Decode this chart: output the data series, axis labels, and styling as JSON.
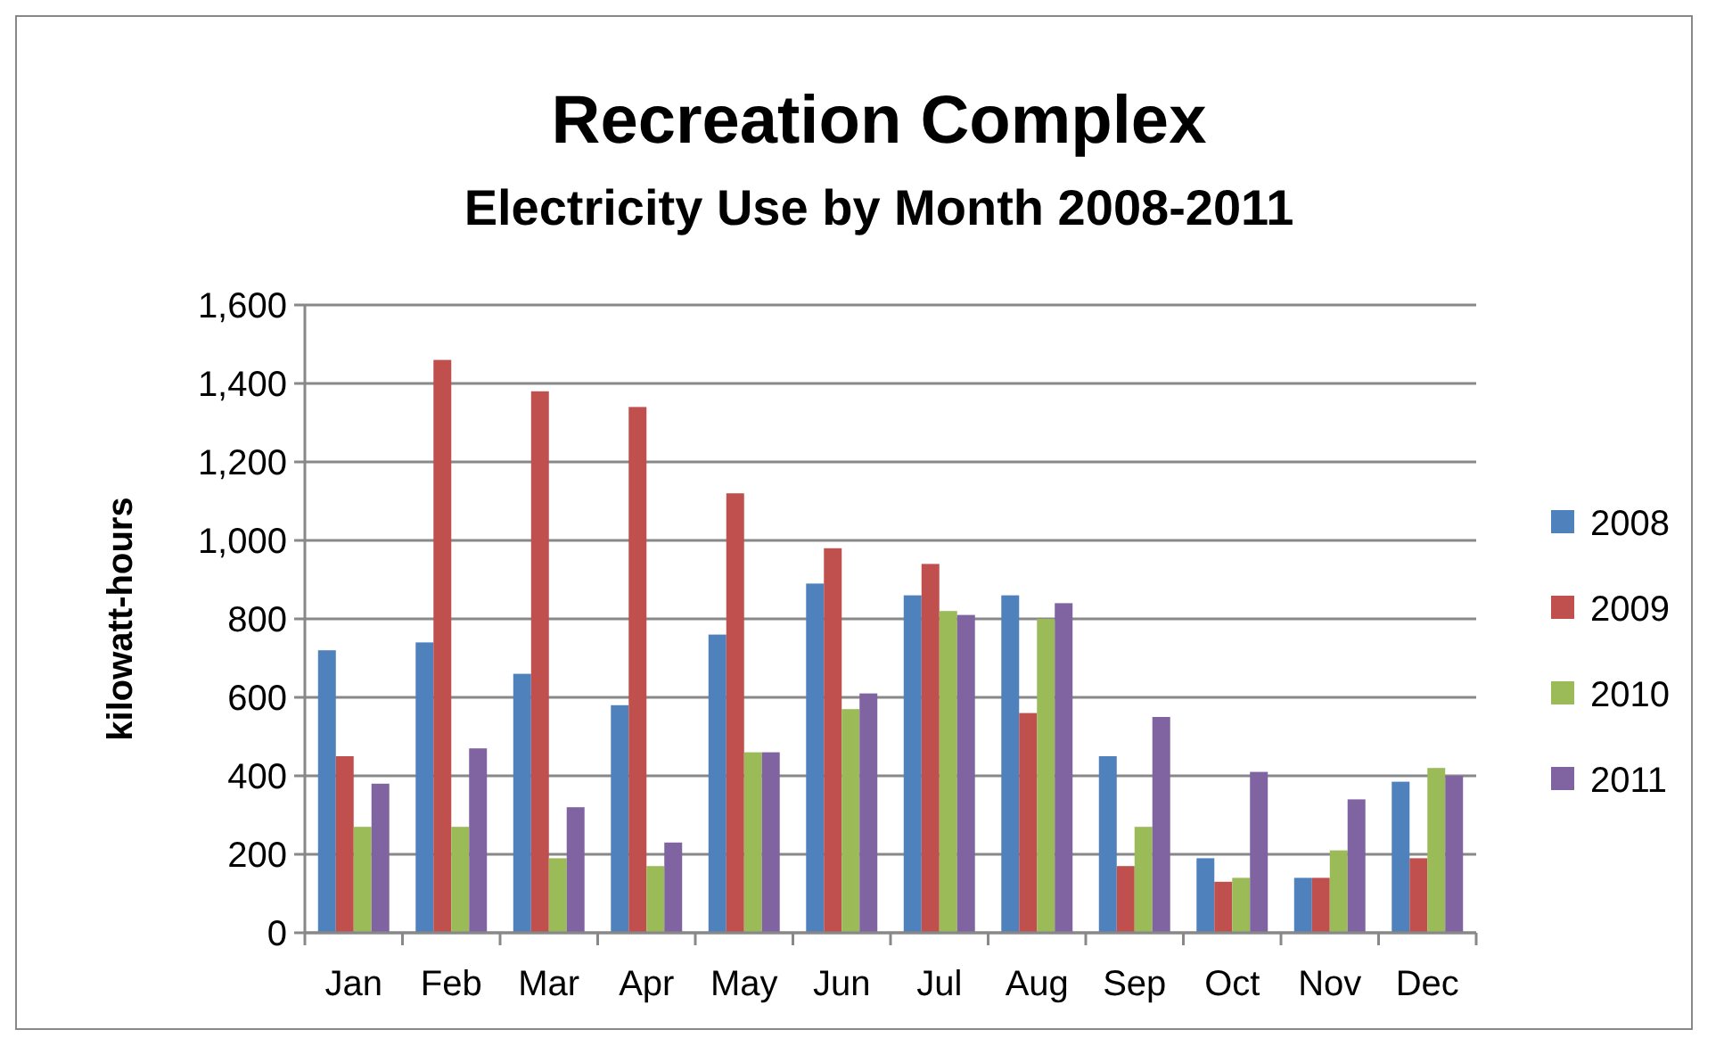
{
  "chart_data": {
    "type": "bar",
    "title": "Recreation Complex",
    "subtitle": "Electricity Use by Month 2008-2011",
    "ylabel": "kilowatt-hours",
    "categories": [
      "Jan",
      "Feb",
      "Mar",
      "Apr",
      "May",
      "Jun",
      "Jul",
      "Aug",
      "Sep",
      "Oct",
      "Nov",
      "Dec"
    ],
    "series": [
      {
        "name": "2008",
        "color": "#4f81bd",
        "values": [
          720,
          740,
          660,
          580,
          760,
          890,
          860,
          860,
          450,
          190,
          140,
          385
        ]
      },
      {
        "name": "2009",
        "color": "#c0504d",
        "values": [
          450,
          1460,
          1380,
          1340,
          1120,
          980,
          940,
          560,
          170,
          130,
          140,
          190
        ]
      },
      {
        "name": "2010",
        "color": "#9bbb59",
        "values": [
          270,
          270,
          190,
          170,
          460,
          570,
          820,
          800,
          270,
          140,
          210,
          420
        ]
      },
      {
        "name": "2011",
        "color": "#8064a2",
        "values": [
          380,
          470,
          320,
          230,
          460,
          610,
          810,
          840,
          550,
          410,
          340,
          400
        ]
      }
    ],
    "ylim": [
      0,
      1600
    ],
    "yticks": [
      {
        "value": 0,
        "label": "0"
      },
      {
        "value": 200,
        "label": "200"
      },
      {
        "value": 400,
        "label": "400"
      },
      {
        "value": 600,
        "label": "600"
      },
      {
        "value": 800,
        "label": "800"
      },
      {
        "value": 1000,
        "label": "1,000"
      },
      {
        "value": 1200,
        "label": "1,200"
      },
      {
        "value": 1400,
        "label": "1,400"
      },
      {
        "value": 1600,
        "label": "1,600"
      }
    ],
    "grid": "y",
    "legend": "right"
  }
}
